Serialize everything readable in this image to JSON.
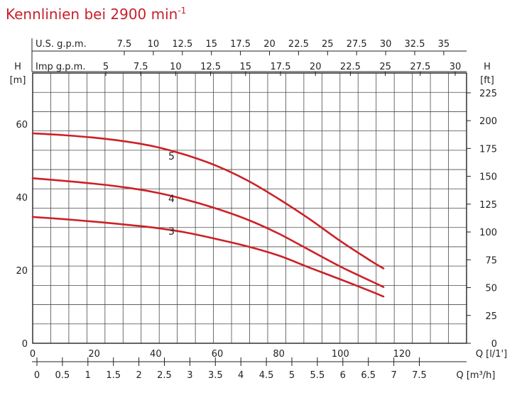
{
  "chart_data": {
    "type": "line",
    "title": "Kennlinien bei 2900 min",
    "title_superscript": "-1",
    "curve_color": "#cc2127",
    "grid": true,
    "x": {
      "label": "Q [l/1']",
      "range": [
        0,
        141
      ],
      "ticks": [
        0,
        20,
        40,
        60,
        80,
        100,
        120
      ]
    },
    "y_left": {
      "label_line1": "H",
      "label_line2": "[m]",
      "range": [
        0,
        74
      ],
      "ticks": [
        0,
        20,
        40,
        60
      ]
    },
    "y_right": {
      "label_line1": "H",
      "label_line2": "[ft]",
      "ticks": [
        "0",
        "25",
        "50",
        "75",
        "100",
        "125",
        "150",
        "175",
        "200",
        "225"
      ]
    },
    "top_axis_us": {
      "label": "U.S. g.p.m.",
      "ticks": [
        "7.5",
        "10",
        "12.5",
        "15",
        "17.5",
        "20",
        "22.5",
        "25",
        "27.5",
        "30",
        "32.5",
        "35"
      ]
    },
    "top_axis_imp": {
      "label": "Imp g.p.m.",
      "ticks": [
        "5",
        "7.5",
        "10",
        "12.5",
        "15",
        "17.5",
        "20",
        "22.5",
        "25",
        "27.5",
        "30"
      ]
    },
    "bottom_axis_m3h": {
      "label": "Q [m³/h]",
      "ticks": [
        "0",
        "0.5",
        "1",
        "1.5",
        "2",
        "2.5",
        "3",
        "3.5",
        "4",
        "4.5",
        "5",
        "5.5",
        "6",
        "6.5",
        "7",
        "7.5"
      ]
    },
    "series": [
      {
        "name": "5",
        "points": [
          [
            0,
            57.5
          ],
          [
            10,
            57.0
          ],
          [
            20,
            56.3
          ],
          [
            30,
            55.3
          ],
          [
            40,
            53.8
          ],
          [
            50,
            51.5
          ],
          [
            60,
            48.5
          ],
          [
            70,
            44.5
          ],
          [
            80,
            39.5
          ],
          [
            90,
            34.0
          ],
          [
            100,
            28.0
          ],
          [
            110,
            22.5
          ],
          [
            114,
            20.5
          ]
        ]
      },
      {
        "name": "4",
        "points": [
          [
            0,
            45.2
          ],
          [
            10,
            44.5
          ],
          [
            20,
            43.7
          ],
          [
            30,
            42.7
          ],
          [
            40,
            41.3
          ],
          [
            50,
            39.3
          ],
          [
            60,
            36.8
          ],
          [
            70,
            33.8
          ],
          [
            80,
            30.0
          ],
          [
            90,
            25.5
          ],
          [
            100,
            21.0
          ],
          [
            110,
            17.0
          ],
          [
            114,
            15.4
          ]
        ]
      },
      {
        "name": "3",
        "points": [
          [
            0,
            34.6
          ],
          [
            10,
            34.0
          ],
          [
            20,
            33.3
          ],
          [
            30,
            32.5
          ],
          [
            40,
            31.6
          ],
          [
            50,
            30.3
          ],
          [
            60,
            28.5
          ],
          [
            70,
            26.5
          ],
          [
            80,
            24.0
          ],
          [
            90,
            20.7
          ],
          [
            100,
            17.5
          ],
          [
            110,
            14.2
          ],
          [
            114,
            12.8
          ]
        ]
      }
    ]
  }
}
